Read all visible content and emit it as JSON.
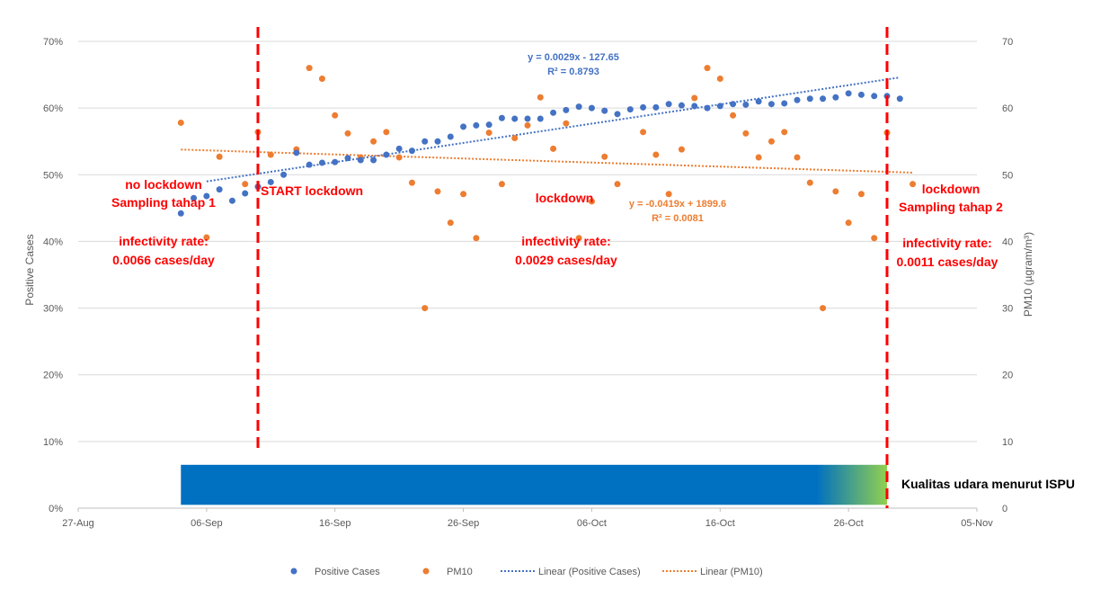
{
  "chart_data": {
    "type": "scatter",
    "title": "",
    "xlabel": "",
    "ylabel": "Positive Cases",
    "y2label": "PM10 (µgram/m³)",
    "x_axis": {
      "type": "date",
      "min": "2020-08-27",
      "max": "2020-11-05",
      "tick_labels": [
        "27-Aug",
        "06-Sep",
        "16-Sep",
        "26-Sep",
        "06-Oct",
        "16-Oct",
        "26-Oct",
        "05-Nov"
      ]
    },
    "y_axis_left": {
      "min": 0,
      "max": 0.7,
      "tick_labels": [
        "0%",
        "10%",
        "20%",
        "30%",
        "40%",
        "50%",
        "60%",
        "70%"
      ]
    },
    "y_axis_right": {
      "min": 0,
      "max": 70,
      "tick_labels": [
        "0",
        "10",
        "20",
        "30",
        "40",
        "50",
        "60",
        "70"
      ]
    },
    "grid": true,
    "legend_position": "bottom",
    "colors": {
      "positive_cases": "#4472c4",
      "pm10": "#ed7d31",
      "annotation": "#ff0000",
      "band_start": "#0070c0",
      "band_end": "#92d050"
    },
    "legend": [
      {
        "name": "Positive Cases",
        "type": "marker",
        "color": "#4472c4"
      },
      {
        "name": "PM10",
        "type": "marker",
        "color": "#ed7d31"
      },
      {
        "name": "Linear (Positive Cases)",
        "type": "dotted",
        "color": "#4472c4"
      },
      {
        "name": "Linear (PM10)",
        "type": "dotted",
        "color": "#ed7d31"
      }
    ],
    "series": [
      {
        "name": "Positive Cases",
        "axis": "left",
        "x": [
          "2020-09-04",
          "2020-09-05",
          "2020-09-06",
          "2020-09-07",
          "2020-09-08",
          "2020-09-09",
          "2020-09-10",
          "2020-09-11",
          "2020-09-12",
          "2020-09-13",
          "2020-09-14",
          "2020-09-15",
          "2020-09-16",
          "2020-09-17",
          "2020-09-18",
          "2020-09-19",
          "2020-09-20",
          "2020-09-21",
          "2020-09-22",
          "2020-09-23",
          "2020-09-24",
          "2020-09-25",
          "2020-09-26",
          "2020-09-27",
          "2020-09-28",
          "2020-09-29",
          "2020-09-30",
          "2020-10-01",
          "2020-10-02",
          "2020-10-03",
          "2020-10-04",
          "2020-10-05",
          "2020-10-06",
          "2020-10-07",
          "2020-10-08",
          "2020-10-09",
          "2020-10-10",
          "2020-10-11",
          "2020-10-12",
          "2020-10-13",
          "2020-10-14",
          "2020-10-15",
          "2020-10-16",
          "2020-10-17",
          "2020-10-18",
          "2020-10-19",
          "2020-10-20",
          "2020-10-21",
          "2020-10-22",
          "2020-10-23",
          "2020-10-24",
          "2020-10-25",
          "2020-10-26",
          "2020-10-27",
          "2020-10-28",
          "2020-10-29",
          "2020-10-30"
        ],
        "y": [
          0.442,
          0.465,
          0.468,
          0.478,
          0.461,
          0.472,
          0.482,
          0.489,
          0.5,
          0.533,
          0.515,
          0.518,
          0.519,
          0.525,
          0.522,
          0.522,
          0.53,
          0.539,
          0.536,
          0.55,
          0.55,
          0.557,
          0.572,
          0.574,
          0.575,
          0.585,
          0.584,
          0.584,
          0.584,
          0.593,
          0.597,
          0.602,
          0.6,
          0.596,
          0.591,
          0.598,
          0.601,
          0.601,
          0.606,
          0.604,
          0.603,
          0.6,
          0.603,
          0.606,
          0.605,
          0.61,
          0.606,
          0.607,
          0.612,
          0.614,
          0.614,
          0.616,
          0.622,
          0.62,
          0.618,
          0.618,
          0.614
        ]
      },
      {
        "name": "PM10",
        "axis": "right",
        "x": [
          "2020-09-04",
          "2020-09-06",
          "2020-09-07",
          "2020-09-09",
          "2020-09-10",
          "2020-09-11",
          "2020-09-13",
          "2020-09-14",
          "2020-09-15",
          "2020-09-16",
          "2020-09-17",
          "2020-09-18",
          "2020-09-19",
          "2020-09-20",
          "2020-09-21",
          "2020-09-22",
          "2020-09-23",
          "2020-09-24",
          "2020-09-25",
          "2020-09-26",
          "2020-09-27",
          "2020-09-28",
          "2020-09-29",
          "2020-09-30",
          "2020-10-01",
          "2020-10-02",
          "2020-10-03",
          "2020-10-04",
          "2020-10-05",
          "2020-10-06",
          "2020-10-07",
          "2020-10-08",
          "2020-10-10",
          "2020-10-11",
          "2020-10-12",
          "2020-10-13",
          "2020-10-14",
          "2020-10-15",
          "2020-10-16",
          "2020-10-17",
          "2020-10-18",
          "2020-10-19",
          "2020-10-20",
          "2020-10-21",
          "2020-10-22",
          "2020-10-23",
          "2020-10-24",
          "2020-10-25",
          "2020-10-26",
          "2020-10-27",
          "2020-10-28",
          "2020-10-29",
          "2020-10-31"
        ],
        "y": [
          57.8,
          40.6,
          52.7,
          48.6,
          56.4,
          53.0,
          53.8,
          66.0,
          64.4,
          58.9,
          56.2,
          52.6,
          55.0,
          56.4,
          52.6,
          48.8,
          30.0,
          47.5,
          42.8,
          47.1,
          40.5,
          56.3,
          48.6,
          55.5,
          57.4,
          61.6,
          53.9,
          57.7,
          40.5,
          46.0,
          52.7,
          48.6,
          56.4,
          53.0,
          47.1,
          53.8,
          61.5,
          66.0,
          64.4,
          58.9,
          56.2,
          52.6,
          55.0,
          56.4,
          52.6,
          48.8,
          30.0,
          47.5,
          42.8,
          47.1,
          40.5,
          56.3,
          48.6
        ]
      }
    ],
    "trendlines": [
      {
        "name": "Linear (Positive Cases)",
        "equation": "y = 0.0029x - 127.65",
        "r2": "R² = 0.8793",
        "color": "#4472c4"
      },
      {
        "name": "Linear (PM10)",
        "equation": "y = -0.0419x + 1899.6",
        "r2": "R² = 0.0081",
        "color": "#ed7d31"
      }
    ],
    "vertical_lines": [
      {
        "x": "2020-09-10",
        "color": "#ff0000"
      },
      {
        "x": "2020-10-29",
        "color": "#ff0000"
      }
    ],
    "annotations": {
      "phase1_title": "no lockdown",
      "phase1_sub": "Sampling tahap 1",
      "phase1_rate_label": "infectivity rate:",
      "phase1_rate_value": "0.0066 cases/day",
      "start_label": "START lockdown",
      "phase2_title": "lockdown",
      "phase2_rate_label": "infectivity rate:",
      "phase2_rate_value": "0.0029 cases/day",
      "phase3_title": "lockdown",
      "phase3_sub": "Sampling tahap 2",
      "phase3_rate_label": "infectivity rate:",
      "phase3_rate_value": "0.0011 cases/day"
    },
    "band": {
      "label": "Kualitas udara menurut ISPU",
      "x_start": "2020-09-04",
      "x_end": "2020-10-29"
    }
  }
}
